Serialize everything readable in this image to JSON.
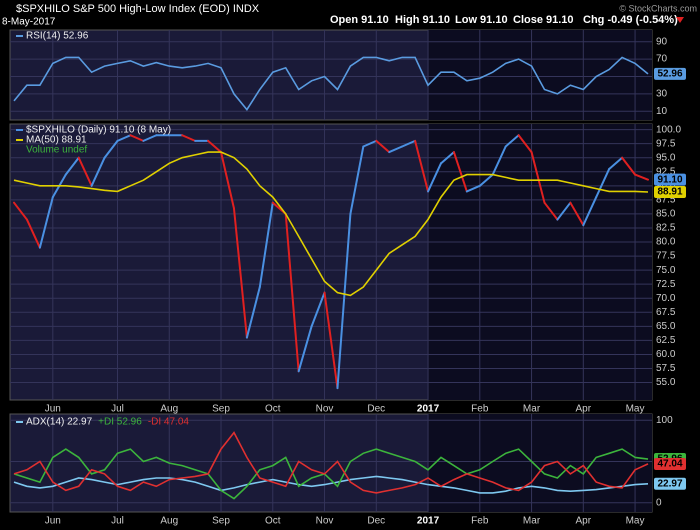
{
  "header": {
    "title": "$SPXHILO S&P 500 High-Low Index (EOD) INDX",
    "date": "8-May-2017",
    "ohlc": [
      "Open 91.10",
      "High 91.10",
      "Low 91.10",
      "Close 91.10",
      "Chg -0.49 (-0.54%)"
    ],
    "credit": "© StockCharts.com"
  },
  "chart_data": [
    {
      "type": "line",
      "ylim": [
        0,
        100
      ],
      "yticks": [
        10,
        30,
        50,
        70,
        90
      ],
      "series": [
        {
          "name": "RSI(14) 52.96",
          "color": "#5a9be0",
          "last_label": "52.96",
          "values": [
            22,
            40,
            40,
            65,
            72,
            72,
            55,
            62,
            65,
            68,
            62,
            66,
            62,
            60,
            62,
            65,
            60,
            30,
            12,
            35,
            55,
            60,
            35,
            45,
            50,
            35,
            62,
            72,
            72,
            68,
            72,
            72,
            40,
            55,
            55,
            45,
            48,
            55,
            65,
            70,
            62,
            35,
            30,
            40,
            35,
            50,
            58,
            72,
            65,
            52.96
          ]
        }
      ]
    },
    {
      "type": "line",
      "ylim": [
        52.25,
        101
      ],
      "yticks": [
        {
          "value": 55,
          "label": "55.0"
        },
        {
          "value": 57.5,
          "label": "57.5"
        },
        {
          "value": 60,
          "label": "60.0"
        },
        {
          "value": 62.5,
          "label": "62.5"
        },
        {
          "value": 65,
          "label": "65.0"
        },
        {
          "value": 67.5,
          "label": "67.5"
        },
        {
          "value": 70,
          "label": "70.0"
        },
        {
          "value": 72.5,
          "label": "72.5"
        },
        {
          "value": 75,
          "label": "75.0"
        },
        {
          "value": 77.5,
          "label": "77.5"
        },
        {
          "value": 80,
          "label": "80.0"
        },
        {
          "value": 82.5,
          "label": "82.5"
        },
        {
          "value": 85,
          "label": "85.0"
        },
        {
          "value": 87.5,
          "label": "87.5"
        },
        {
          "value": 90,
          "label": "90.0"
        },
        {
          "value": 92.5,
          "label": "92.5"
        },
        {
          "value": 95,
          "label": "95.0"
        },
        {
          "value": 97.5,
          "label": "97.5"
        },
        {
          "value": 100,
          "label": "100.0"
        }
      ],
      "categories": [
        null,
        null,
        null,
        "Jun",
        null,
        null,
        null,
        null,
        "Jul",
        null,
        null,
        null,
        "Aug",
        null,
        null,
        null,
        "Sep",
        null,
        null,
        null,
        "Oct",
        null,
        null,
        null,
        "Nov",
        null,
        null,
        null,
        "Dec",
        null,
        null,
        null,
        "2017",
        null,
        null,
        null,
        "Feb",
        null,
        null,
        null,
        "Mar",
        null,
        null,
        null,
        "Apr",
        null,
        null,
        null,
        "May",
        null
      ],
      "series": [
        {
          "name": "$SPXHILO (Daily) 91.10 (8 May)",
          "color": "#4a90e2",
          "down_color": "#e02020",
          "last_label": "91.10",
          "values": [
            87,
            84,
            79,
            88,
            92,
            95,
            90,
            95,
            98,
            99,
            98,
            99,
            99,
            99,
            98,
            98,
            96,
            86,
            63,
            72,
            87,
            85,
            57,
            65,
            71,
            54,
            85,
            97,
            98,
            96,
            97,
            98,
            89,
            94,
            96,
            89,
            90,
            92,
            97,
            99,
            96,
            87,
            84,
            87,
            83,
            88,
            93,
            95,
            92,
            91.1
          ]
        },
        {
          "name": "MA(50) 88.91",
          "color": "#e0d000",
          "last_label": "88.91",
          "values": [
            91,
            90.5,
            90,
            90,
            90,
            89.8,
            89.5,
            89.2,
            89,
            90,
            91,
            92.5,
            94,
            95,
            95.5,
            96,
            96,
            95,
            93,
            90,
            88,
            85,
            81,
            77,
            73,
            71,
            70.5,
            72,
            75,
            78,
            79.5,
            81,
            84,
            88,
            91,
            92,
            92,
            92,
            91.5,
            91,
            91,
            91,
            91,
            90.5,
            90,
            89.5,
            89,
            89,
            89,
            88.91
          ]
        }
      ],
      "note": "Volume undef"
    },
    {
      "type": "line",
      "ylim": [
        -10,
        110
      ],
      "yticks": [
        0,
        50,
        100
      ],
      "categories": [
        null,
        null,
        null,
        "Jun",
        null,
        null,
        null,
        null,
        "Jul",
        null,
        null,
        null,
        "Aug",
        null,
        null,
        null,
        "Sep",
        null,
        null,
        null,
        "Oct",
        null,
        null,
        null,
        "Nov",
        null,
        null,
        null,
        "Dec",
        null,
        null,
        null,
        "2017",
        null,
        null,
        null,
        "Feb",
        null,
        null,
        null,
        "Mar",
        null,
        null,
        null,
        "Apr",
        null,
        null,
        null,
        "May",
        null
      ],
      "series": [
        {
          "name": "ADX(14) 22.97",
          "color": "#7ec8f0",
          "last_label": "22.97",
          "values": [
            25,
            20,
            18,
            20,
            25,
            30,
            28,
            25,
            22,
            25,
            28,
            30,
            30,
            28,
            25,
            20,
            15,
            18,
            22,
            25,
            28,
            25,
            22,
            20,
            22,
            25,
            28,
            30,
            32,
            30,
            28,
            25,
            22,
            20,
            18,
            15,
            12,
            12,
            14,
            18,
            20,
            18,
            15,
            14,
            15,
            16,
            18,
            20,
            22,
            22.97
          ]
        },
        {
          "name": "+DI 52.96",
          "color": "#3cb43c",
          "last_label": "52.96",
          "values": [
            35,
            30,
            25,
            55,
            65,
            55,
            35,
            40,
            60,
            65,
            50,
            55,
            48,
            45,
            40,
            35,
            15,
            5,
            20,
            40,
            45,
            55,
            20,
            30,
            35,
            20,
            50,
            60,
            65,
            60,
            55,
            50,
            40,
            55,
            45,
            35,
            40,
            50,
            60,
            65,
            50,
            35,
            30,
            45,
            35,
            55,
            60,
            65,
            55,
            52.96
          ]
        },
        {
          "name": "-DI 47.04",
          "color": "#e03030",
          "last_label": "47.04",
          "values": [
            35,
            40,
            50,
            25,
            15,
            20,
            40,
            35,
            20,
            15,
            25,
            20,
            28,
            30,
            32,
            35,
            65,
            85,
            55,
            30,
            25,
            20,
            50,
            40,
            35,
            50,
            25,
            15,
            12,
            15,
            18,
            22,
            30,
            20,
            28,
            35,
            30,
            25,
            18,
            15,
            25,
            45,
            50,
            35,
            45,
            25,
            20,
            18,
            40,
            47.04
          ]
        }
      ]
    }
  ]
}
